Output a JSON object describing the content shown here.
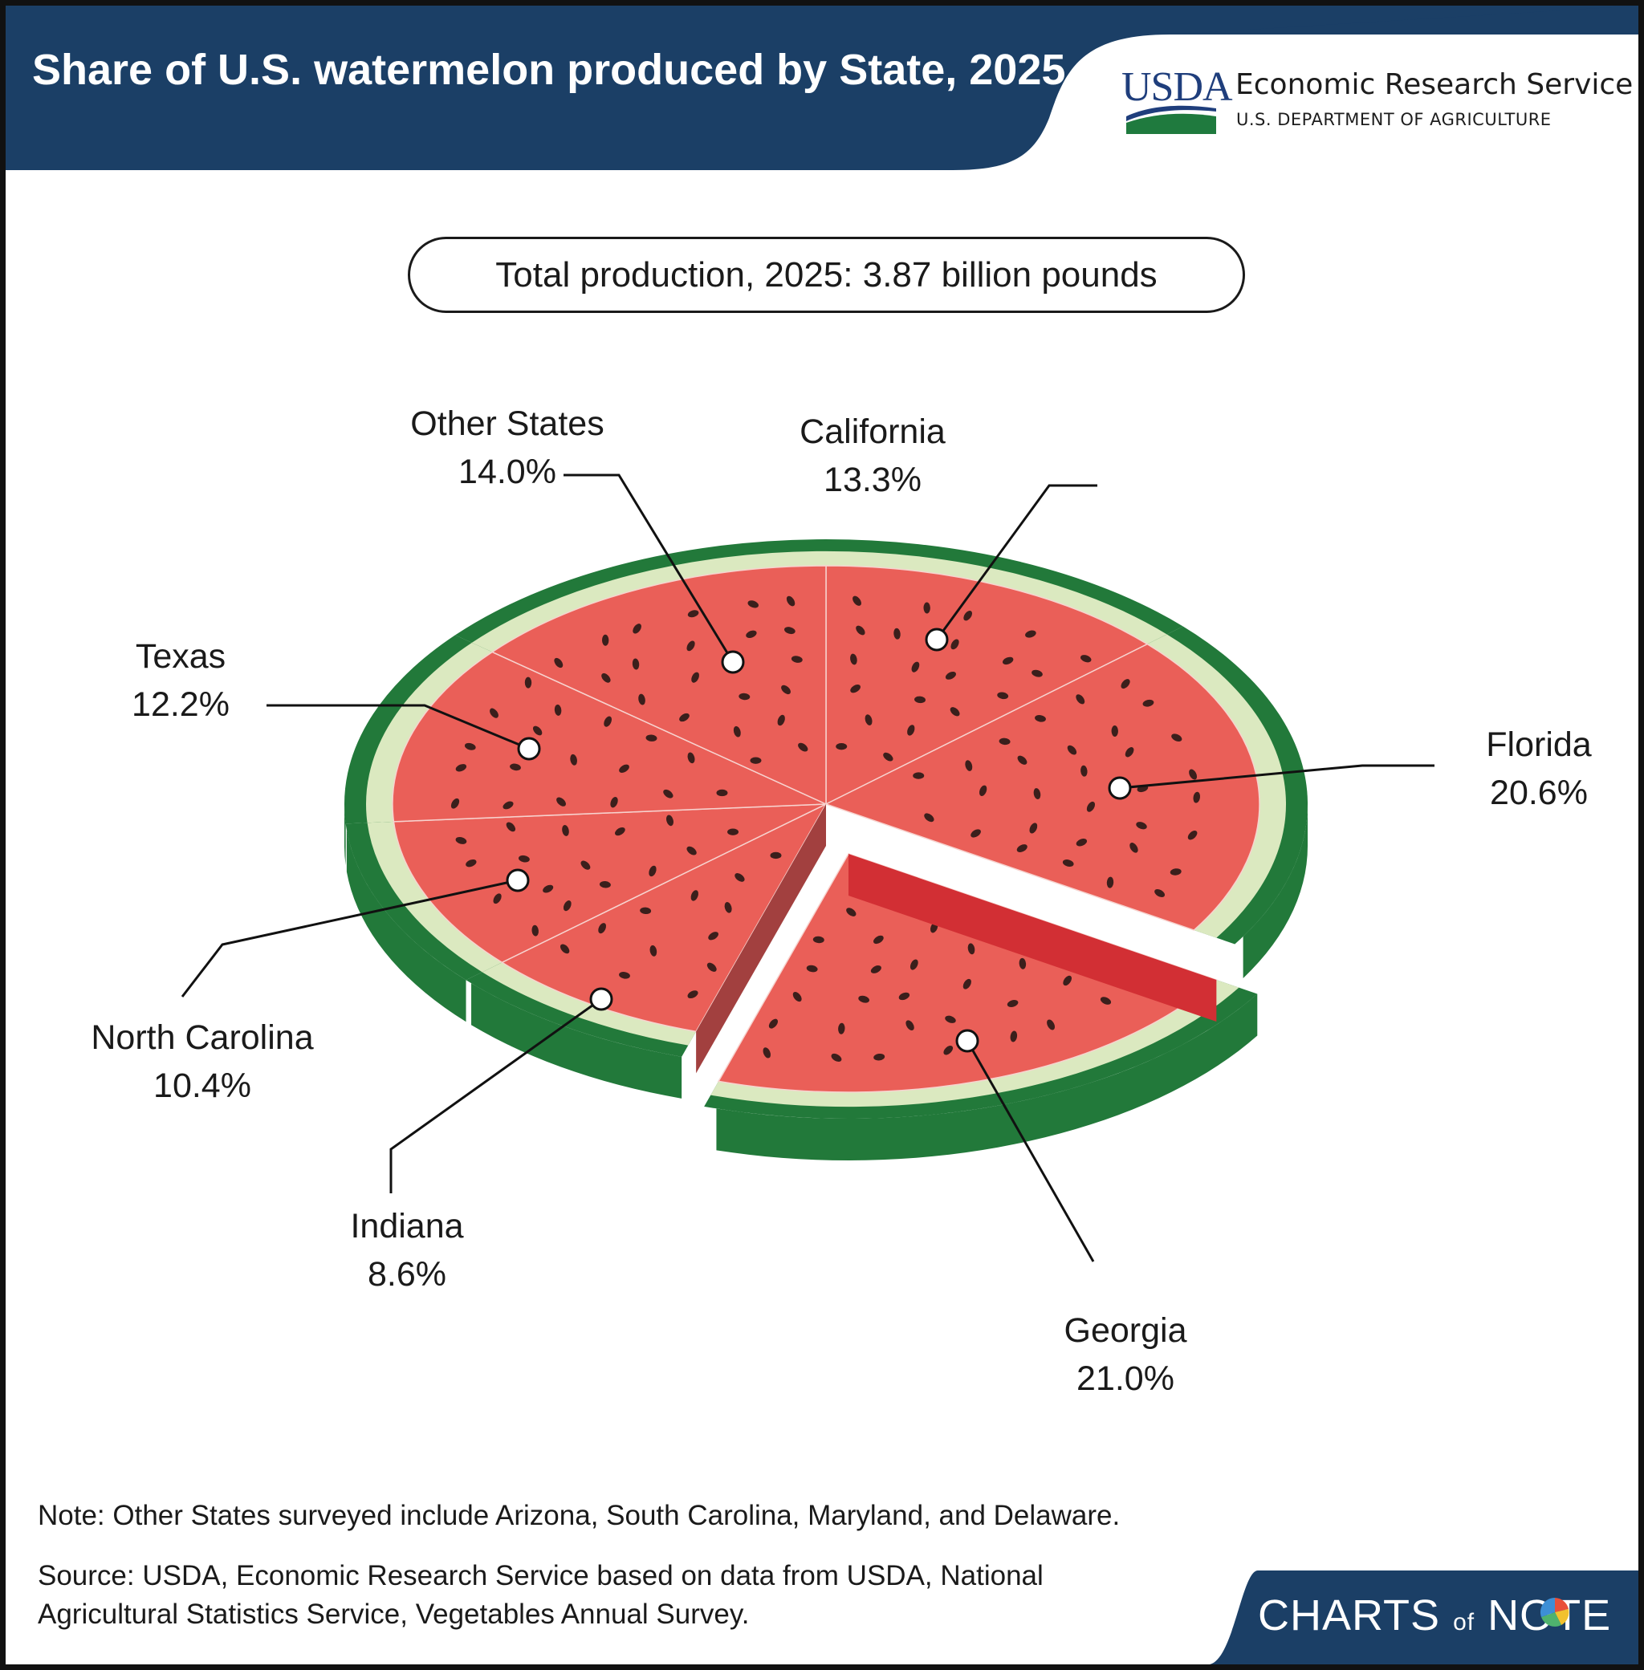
{
  "header": {
    "title": "Share of U.S. watermelon produced by State, 2025",
    "logo_text": "USDA",
    "agency": "Economic Research Service",
    "department": "U.S. DEPARTMENT OF AGRICULTURE"
  },
  "total_label": "Total production, 2025: 3.87 billion pounds",
  "chart_data": {
    "type": "pie",
    "title": "Share of U.S. watermelon produced by State, 2025",
    "subtitle": "Total production, 2025: 3.87 billion pounds",
    "unit": "%",
    "slices": [
      {
        "name": "California",
        "value": 13.3,
        "label": "13.3%"
      },
      {
        "name": "Florida",
        "value": 20.6,
        "label": "20.6%"
      },
      {
        "name": "Georgia",
        "value": 21.0,
        "label": "21.0%"
      },
      {
        "name": "Indiana",
        "value": 8.6,
        "label": "8.6%"
      },
      {
        "name": "North Carolina",
        "value": 10.4,
        "label": "10.4%"
      },
      {
        "name": "Texas",
        "value": 12.2,
        "label": "12.2%"
      },
      {
        "name": "Other States",
        "value": 14.0,
        "label": "14.0%"
      }
    ],
    "exploded": "Georgia"
  },
  "footer": {
    "note": "Note: Other States surveyed include Arizona, South Carolina, Maryland, and Delaware.",
    "source": "Source: USDA, Economic Research Service based on data from USDA, National Agricultural Statistics Service, Vegetables Annual Survey.",
    "brand_left": "CHARTS",
    "brand_of": "of",
    "brand_right": "NOTE"
  },
  "colors": {
    "header": "#1b3f66",
    "flesh": "#ea5f58",
    "rind_dark": "#22793a",
    "rind_light": "#dbe9c0",
    "seed": "#3b1f1c",
    "side_face": "#d22f34",
    "side_face_dark": "#a2403f"
  }
}
